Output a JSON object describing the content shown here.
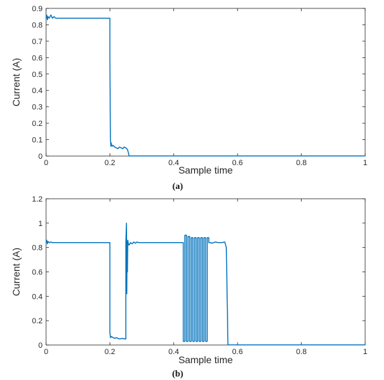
{
  "chart_data": [
    {
      "type": "line",
      "panel_label": "(a)",
      "xlabel": "Sample time",
      "ylabel": "Current (A)",
      "xlim": [
        0,
        1
      ],
      "ylim": [
        0,
        0.9
      ],
      "xticks": [
        "0",
        "0.2",
        "0.4",
        "0.6",
        "0.8",
        "1"
      ],
      "yticks": [
        "0",
        "0.1",
        "0.2",
        "0.3",
        "0.4",
        "0.5",
        "0.6",
        "0.7",
        "0.8",
        "0.9"
      ],
      "grid": false,
      "series": [
        {
          "color": "#0072BD",
          "x": [
            0,
            0.002,
            0.004,
            0.006,
            0.01,
            0.015,
            0.02,
            0.025,
            0.03,
            0.04,
            0.05,
            0.1,
            0.15,
            0.2,
            0.2,
            0.201,
            0.202,
            0.203,
            0.204,
            0.205,
            0.207,
            0.21,
            0.215,
            0.22,
            0.225,
            0.23,
            0.235,
            0.24,
            0.245,
            0.25,
            0.255,
            0.258,
            0.26,
            0.3,
            0.4,
            0.5,
            0.6,
            0.8,
            1.0
          ],
          "values": [
            0.84,
            0.86,
            0.83,
            0.85,
            0.84,
            0.86,
            0.84,
            0.85,
            0.84,
            0.84,
            0.84,
            0.84,
            0.84,
            0.84,
            0.6,
            0.28,
            0.1,
            0.06,
            0.08,
            0.07,
            0.06,
            0.065,
            0.055,
            0.05,
            0.045,
            0.055,
            0.05,
            0.045,
            0.055,
            0.05,
            0.04,
            0.02,
            0.001,
            0.001,
            0.001,
            0.001,
            0.001,
            0.001,
            0.001
          ]
        }
      ]
    },
    {
      "type": "line",
      "panel_label": "(b)",
      "xlabel": "Sample time",
      "ylabel": "Current (A)",
      "xlim": [
        0,
        1
      ],
      "ylim": [
        0,
        1.2
      ],
      "xticks": [
        "0",
        "0.2",
        "0.4",
        "0.6",
        "0.8",
        "1"
      ],
      "yticks": [
        "0",
        "0.2",
        "0.4",
        "0.6",
        "0.8",
        "1",
        "1.2"
      ],
      "grid": false,
      "series": [
        {
          "color": "#0072BD",
          "x": [
            0,
            0.002,
            0.004,
            0.006,
            0.01,
            0.015,
            0.02,
            0.1,
            0.2,
            0.2,
            0.202,
            0.205,
            0.21,
            0.215,
            0.22,
            0.23,
            0.24,
            0.245,
            0.25,
            0.25,
            0.252,
            0.253,
            0.254,
            0.255,
            0.256,
            0.258,
            0.26,
            0.265,
            0.27,
            0.275,
            0.28,
            0.285,
            0.29,
            0.3,
            0.35,
            0.4,
            0.43,
            0.43,
            0.435,
            0.435,
            0.44,
            0.44,
            0.445,
            0.445,
            0.45,
            0.45,
            0.455,
            0.455,
            0.46,
            0.46,
            0.465,
            0.465,
            0.47,
            0.47,
            0.475,
            0.475,
            0.48,
            0.48,
            0.485,
            0.485,
            0.49,
            0.49,
            0.495,
            0.495,
            0.5,
            0.5,
            0.505,
            0.505,
            0.51,
            0.51,
            0.515,
            0.52,
            0.53,
            0.54,
            0.55,
            0.56,
            0.565,
            0.568,
            0.57,
            0.6,
            0.8,
            1.0
          ],
          "values": [
            0.84,
            0.86,
            0.83,
            0.85,
            0.84,
            0.845,
            0.84,
            0.84,
            0.84,
            0.1,
            0.06,
            0.07,
            0.06,
            0.055,
            0.06,
            0.05,
            0.055,
            0.05,
            0.05,
            0.84,
            1.0,
            0.42,
            0.85,
            0.6,
            0.86,
            0.83,
            0.82,
            0.84,
            0.83,
            0.845,
            0.835,
            0.845,
            0.84,
            0.84,
            0.84,
            0.84,
            0.84,
            0.03,
            0.03,
            0.9,
            0.9,
            0.03,
            0.03,
            0.89,
            0.89,
            0.03,
            0.03,
            0.88,
            0.88,
            0.03,
            0.03,
            0.88,
            0.88,
            0.03,
            0.03,
            0.88,
            0.88,
            0.03,
            0.03,
            0.88,
            0.88,
            0.03,
            0.03,
            0.88,
            0.88,
            0.03,
            0.03,
            0.88,
            0.88,
            0.84,
            0.84,
            0.835,
            0.845,
            0.84,
            0.84,
            0.845,
            0.8,
            0.3,
            0.001,
            0.001,
            0.001,
            0.001
          ]
        }
      ]
    }
  ]
}
